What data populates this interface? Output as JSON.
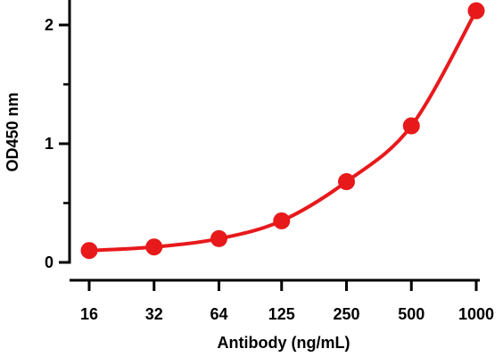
{
  "chart_data": {
    "type": "line",
    "xlabel": "Antibody (ng/mL)",
    "ylabel": "OD450 nm",
    "x_scale": "log2",
    "x_ticks": [
      16,
      32,
      64,
      125,
      250,
      500,
      1000
    ],
    "x_tick_labels": [
      "16",
      "32",
      "64",
      "125",
      "250",
      "500",
      "1000"
    ],
    "y_ticks": [
      0,
      1,
      2
    ],
    "y_tick_labels": [
      "0",
      "1",
      "2"
    ],
    "y_minor_ticks": [
      0.5,
      1.5
    ],
    "ylim": [
      0,
      2.2
    ],
    "grid": false,
    "legend": "none",
    "series": [
      {
        "color": "#e8191b",
        "marker": "circle",
        "x": [
          16,
          32,
          64,
          125,
          250,
          500,
          1000
        ],
        "y": [
          0.1,
          0.13,
          0.2,
          0.35,
          0.68,
          1.15,
          2.12
        ]
      }
    ]
  }
}
